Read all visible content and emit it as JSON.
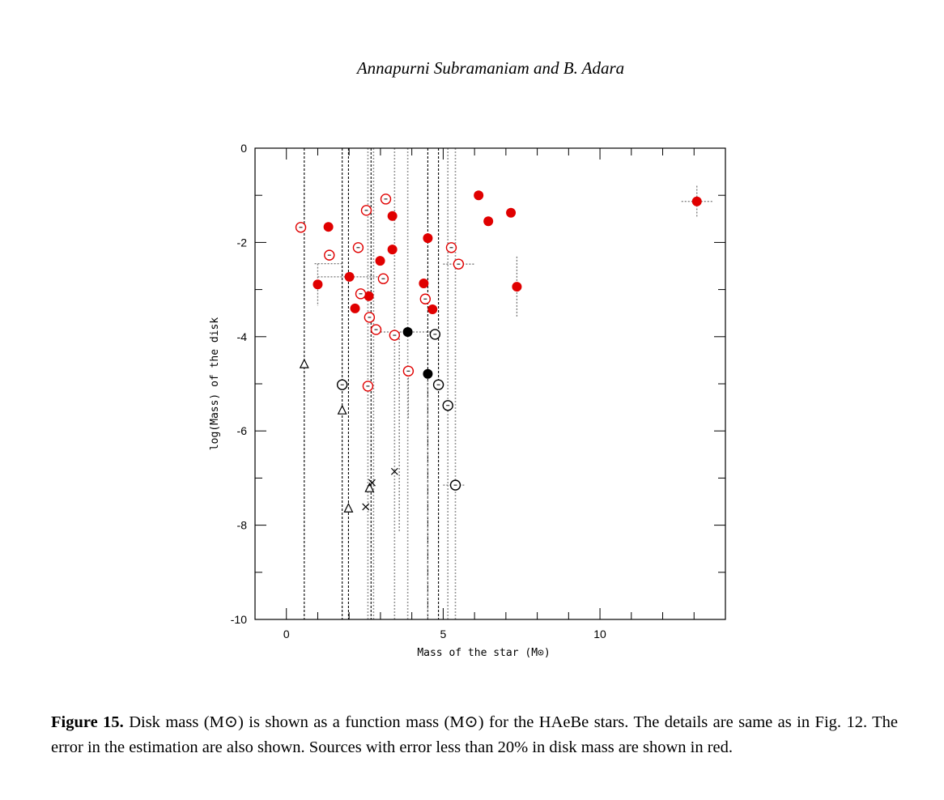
{
  "page": {
    "header": "Annapurni Subramaniam and B. Adara",
    "caption_label": "Figure 15.",
    "caption_text": "Disk mass (M⊙) is shown as a function mass (M⊙) for the HAeBe stars. The details are same as in Fig. 12. The error in the estimation are also shown. Sources with error less than 20% in disk mass are shown in red."
  },
  "chart_data": {
    "type": "scatter",
    "title": "",
    "xlabel": "Mass of the star (M⊙)",
    "ylabel": "log(Mass) of the disk",
    "xlim": [
      -1,
      14
    ],
    "ylim": [
      -10,
      0
    ],
    "xticks": [
      0,
      5,
      10
    ],
    "yticks": [
      0,
      -2,
      -4,
      -6,
      -8,
      -10
    ],
    "grid": false,
    "colors": {
      "red": "#e00000",
      "black": "#000000",
      "grey": "#999999"
    },
    "series": [
      {
        "name": "red-filled",
        "marker": "filled-circle",
        "color": "red",
        "points": [
          [
            1.34,
            -1.67
          ],
          [
            1.0,
            -2.89
          ],
          [
            2.01,
            -2.73
          ],
          [
            2.19,
            -3.4
          ],
          [
            2.63,
            -3.14
          ],
          [
            2.99,
            -2.39
          ],
          [
            3.38,
            -2.15
          ],
          [
            3.38,
            -1.44
          ],
          [
            4.51,
            -1.91
          ],
          [
            4.38,
            -2.87
          ],
          [
            4.66,
            -3.42
          ],
          [
            6.13,
            -1.0
          ],
          [
            6.44,
            -1.55
          ],
          [
            7.16,
            -1.37
          ],
          [
            7.35,
            -2.94
          ],
          [
            13.09,
            -1.13
          ]
        ]
      },
      {
        "name": "red-open",
        "marker": "open-circle",
        "color": "red",
        "points": [
          [
            0.46,
            -1.68
          ],
          [
            1.37,
            -2.27
          ],
          [
            2.29,
            -2.11
          ],
          [
            2.55,
            -1.32
          ],
          [
            3.17,
            -1.08
          ],
          [
            3.09,
            -2.77
          ],
          [
            2.37,
            -3.09
          ],
          [
            2.65,
            -3.59
          ],
          [
            2.86,
            -3.85
          ],
          [
            3.45,
            -3.97
          ],
          [
            4.43,
            -3.2
          ],
          [
            3.89,
            -4.73
          ],
          [
            2.6,
            -5.05
          ],
          [
            5.26,
            -2.11
          ],
          [
            5.49,
            -2.46
          ]
        ]
      },
      {
        "name": "black-filled",
        "marker": "filled-circle",
        "color": "black",
        "points": [
          [
            3.87,
            -3.9
          ],
          [
            4.51,
            -4.79
          ]
        ]
      },
      {
        "name": "black-open",
        "marker": "open-circle",
        "color": "black",
        "points": [
          [
            4.74,
            -3.95
          ],
          [
            1.78,
            -5.02
          ],
          [
            4.85,
            -5.02
          ],
          [
            5.15,
            -5.46
          ],
          [
            5.39,
            -7.15
          ]
        ]
      },
      {
        "name": "triangles",
        "marker": "triangle",
        "color": "black",
        "points": [
          [
            0.57,
            -4.59
          ],
          [
            1.78,
            -5.57
          ],
          [
            1.98,
            -7.65
          ],
          [
            2.65,
            -7.22
          ]
        ]
      },
      {
        "name": "crosses",
        "marker": "cross",
        "color": "black",
        "points": [
          [
            3.45,
            -6.86
          ],
          [
            2.73,
            -7.1
          ],
          [
            2.53,
            -7.61
          ]
        ]
      }
    ],
    "error_bars": {
      "vertical_full_range_x": {
        "black": [
          0.57,
          1.78,
          1.98,
          2.7,
          4.51,
          4.85
        ],
        "grey": [
          2.6,
          2.78,
          3.45,
          3.87,
          5.15,
          5.39
        ]
      },
      "segments": [
        {
          "x": [
            1.0,
            1.0
          ],
          "y": [
            -2.45,
            -3.35
          ]
        },
        {
          "x": [
            0.9,
            1.8
          ],
          "y": [
            -2.45,
            -2.45
          ]
        },
        {
          "x": [
            1.0,
            3.0
          ],
          "y": [
            -2.73,
            -2.73
          ]
        },
        {
          "x": [
            3.0,
            4.8
          ],
          "y": [
            -3.9,
            -3.9
          ]
        },
        {
          "x": [
            3.89,
            3.89
          ],
          "y": [
            -4.73,
            -5.75
          ]
        },
        {
          "x": [
            3.6,
            3.6
          ],
          "y": [
            -3.9,
            -8.15
          ]
        },
        {
          "x": [
            4.51,
            4.51
          ],
          "y": [
            -4.79,
            -10
          ]
        },
        {
          "x": [
            5.0,
            6.0
          ],
          "y": [
            -2.46,
            -2.46
          ]
        },
        {
          "x": [
            7.35,
            7.35
          ],
          "y": [
            -2.3,
            -3.58
          ]
        },
        {
          "x": [
            12.6,
            13.6
          ],
          "y": [
            -1.13,
            -1.13
          ]
        },
        {
          "x": [
            13.09,
            13.09
          ],
          "y": [
            -0.8,
            -1.45
          ]
        },
        {
          "x": [
            5.0,
            5.7
          ],
          "y": [
            -7.15,
            -7.15
          ]
        }
      ]
    }
  }
}
